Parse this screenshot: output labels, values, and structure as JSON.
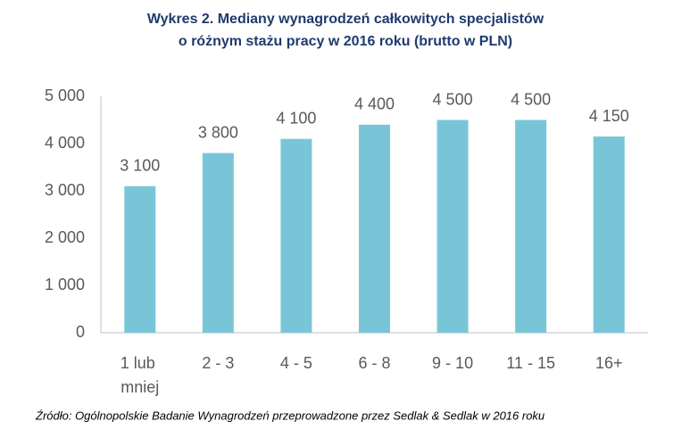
{
  "chart_data": {
    "type": "bar",
    "title": [
      "Wykres 2. Mediany wynagrodzeń całkowitych specjalistów",
      "o różnym stażu pracy w 2016 roku (brutto w PLN)"
    ],
    "categories": [
      "1 lub mniej",
      "2 - 3",
      "4 - 5",
      "6 - 8",
      "9 - 10",
      "11 - 15",
      "16+"
    ],
    "values": [
      3100,
      3800,
      4100,
      4400,
      4500,
      4500,
      4150
    ],
    "value_labels": [
      "3 100",
      "3 800",
      "4 100",
      "4 400",
      "4 500",
      "4 500",
      "4 150"
    ],
    "color": "#79c5d8",
    "ylim": [
      0,
      5000
    ],
    "yticks": [
      0,
      {
        "value": 1000,
        "label": "1 000"
      },
      {
        "value": 2000,
        "label": "2 000"
      },
      {
        "value": 3000,
        "label": "3 000"
      },
      {
        "value": 4000,
        "label": "4 000"
      },
      {
        "value": 5000,
        "label": "5 000"
      }
    ],
    "grid": false,
    "source": "Źródło: Ogólnopolskie Badanie Wynagrodzeń przeprowadzone przez Sedlak & Sedlak w 2016 roku"
  }
}
